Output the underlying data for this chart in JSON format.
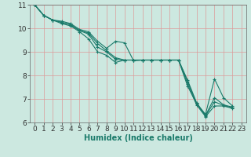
{
  "title": "",
  "xlabel": "Humidex (Indice chaleur)",
  "ylabel": "",
  "background_color": "#cce8e0",
  "grid_color": "#dd9999",
  "line_color": "#1a7a6a",
  "xlim": [
    -0.5,
    23.5
  ],
  "ylim": [
    6,
    11
  ],
  "yticks": [
    6,
    7,
    8,
    9,
    10,
    11
  ],
  "xticks": [
    0,
    1,
    2,
    3,
    4,
    5,
    6,
    7,
    8,
    9,
    10,
    11,
    12,
    13,
    14,
    15,
    16,
    17,
    18,
    19,
    20,
    21,
    22,
    23
  ],
  "series": [
    [
      11.0,
      10.55,
      10.35,
      10.3,
      10.2,
      9.95,
      9.85,
      9.45,
      9.15,
      9.45,
      9.38,
      8.62,
      8.65,
      8.65,
      8.65,
      8.65,
      8.65,
      7.55,
      6.8,
      6.35,
      7.85,
      7.05,
      6.7
    ],
    [
      11.0,
      10.55,
      10.35,
      10.25,
      10.15,
      9.9,
      9.8,
      9.35,
      9.05,
      8.75,
      8.65,
      8.65,
      8.65,
      8.65,
      8.65,
      8.65,
      8.65,
      7.8,
      6.85,
      6.3,
      7.05,
      6.75,
      6.65
    ],
    [
      11.0,
      10.55,
      10.35,
      10.25,
      10.15,
      9.9,
      9.75,
      9.2,
      9.0,
      8.68,
      8.65,
      8.65,
      8.65,
      8.65,
      8.65,
      8.65,
      8.65,
      7.75,
      6.8,
      6.28,
      6.88,
      6.72,
      6.62
    ],
    [
      11.0,
      10.55,
      10.35,
      10.2,
      10.1,
      9.85,
      9.55,
      9.0,
      8.85,
      8.55,
      8.65,
      8.65,
      8.65,
      8.65,
      8.65,
      8.65,
      8.65,
      7.65,
      6.75,
      6.25,
      6.7,
      6.7,
      6.6
    ]
  ],
  "marker": "+",
  "markersize": 3,
  "linewidth": 0.8,
  "xlabel_fontsize": 7,
  "tick_fontsize": 6.5
}
